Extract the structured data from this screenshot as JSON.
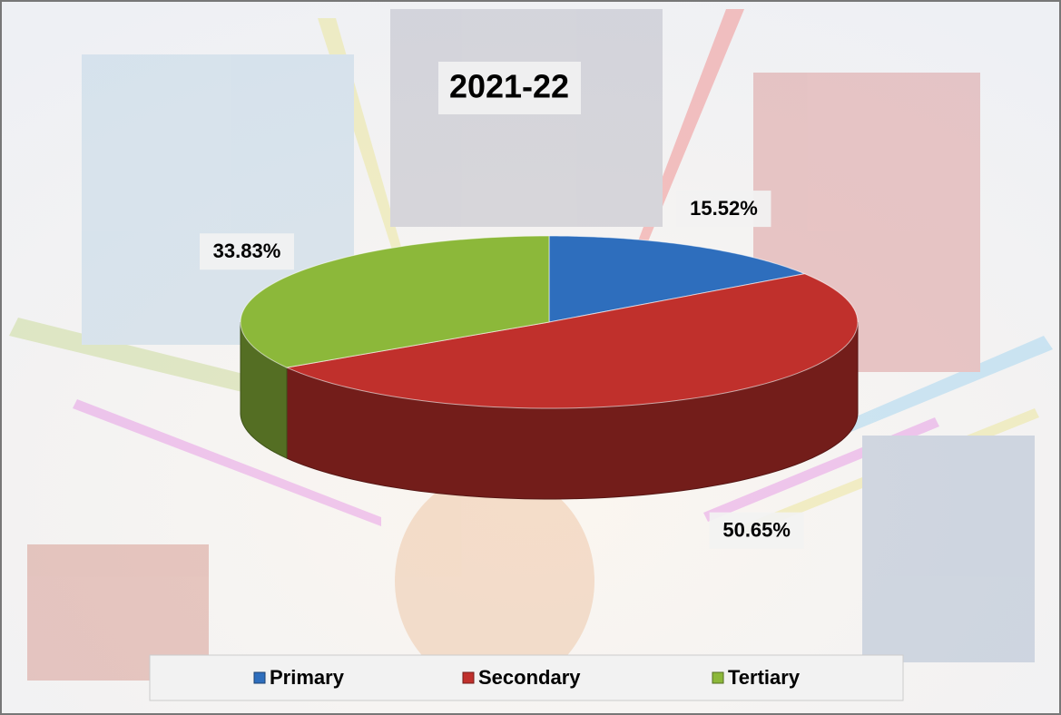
{
  "chart_data": {
    "type": "pie3d",
    "title": "2021-22",
    "categories": [
      "Primary",
      "Secondary",
      "Tertiary"
    ],
    "values": [
      15.52,
      50.65,
      33.83
    ],
    "value_labels": [
      "15.52%",
      "50.65%",
      "33.83%"
    ],
    "colors": [
      "#2e6ebd",
      "#c0302c",
      "#8cb83a"
    ],
    "legend": "bottom"
  }
}
